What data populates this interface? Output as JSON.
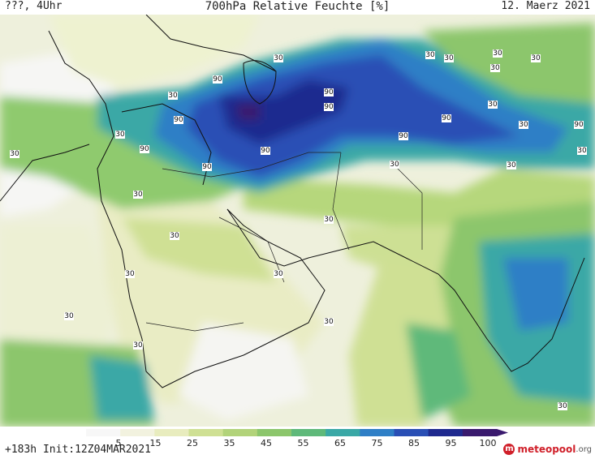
{
  "header": {
    "left": "???, 4Uhr",
    "title": "700hPa Relative Feuchte [%]",
    "date": "12. Maerz 2021"
  },
  "footer": {
    "forecast": "+183h  Init:12Z04MAR2021"
  },
  "logo": {
    "brand": "meteopool",
    "tld": ".org"
  },
  "colorbar": {
    "labels": [
      "5",
      "15",
      "25",
      "35",
      "45",
      "55",
      "65",
      "75",
      "85",
      "95",
      "100"
    ],
    "colors": [
      "#f7f7f7",
      "#f2f2df",
      "#e8ecbe",
      "#cfe094",
      "#b2d37a",
      "#8cc66c",
      "#5fb97a",
      "#3aa8a6",
      "#2f7fc6",
      "#2a4fb5",
      "#1f2a8f",
      "#3a1a6e"
    ]
  },
  "contour_labels": [
    "90",
    "90",
    "90",
    "90",
    "90",
    "90",
    "90",
    "90",
    "90",
    "90",
    "30",
    "30",
    "30",
    "30",
    "30",
    "30",
    "30",
    "30",
    "30",
    "30",
    "30",
    "30",
    "30",
    "30",
    "30",
    "30",
    "30",
    "30",
    "30",
    "30",
    "30",
    "30",
    "30"
  ]
}
